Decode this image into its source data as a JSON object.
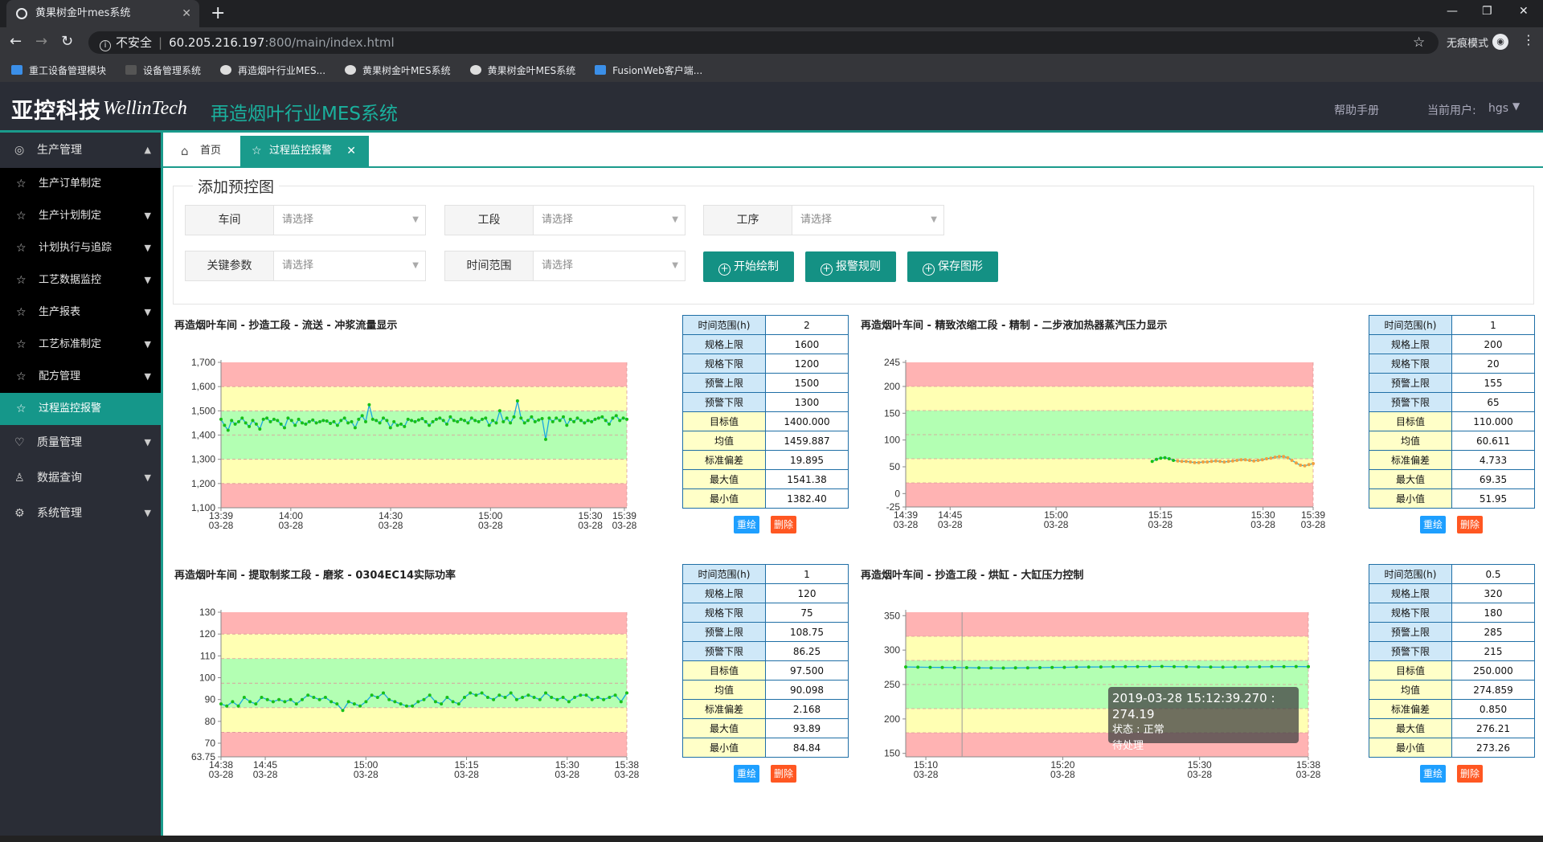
{
  "browser": {
    "tab_title": "黄果树金叶mes系统",
    "insecure": "不安全",
    "url_host": "60.205.216.197",
    "url_path": ":800/main/index.html",
    "incognito": "无痕模式",
    "bookmarks": [
      {
        "label": "重工设备管理模块",
        "color": "#3b8fe8"
      },
      {
        "label": "设备管理系统",
        "color": "#555"
      },
      {
        "label": "再造烟叶行业MES...",
        "color": "#ddd"
      },
      {
        "label": "黄果树金叶MES系统",
        "color": "#ddd"
      },
      {
        "label": "黄果树金叶MES系统",
        "color": "#ddd"
      },
      {
        "label": "FusionWeb客户端...",
        "color": "#3b8fe8"
      }
    ]
  },
  "app": {
    "brand_cn": "亚控科技",
    "brand_en": "WellinTech",
    "system_title": "再造烟叶行业MES系统",
    "help": "帮助手册",
    "current_user_label": "当前用户:",
    "current_user": "hgs"
  },
  "sidebar": {
    "items": [
      {
        "label": "生产管理",
        "type": "parent",
        "expanded": true
      },
      {
        "label": "生产订单制定",
        "type": "sub"
      },
      {
        "label": "生产计划制定",
        "type": "sub",
        "arrow": true
      },
      {
        "label": "计划执行与追踪",
        "type": "sub",
        "arrow": true
      },
      {
        "label": "工艺数据监控",
        "type": "sub",
        "arrow": true
      },
      {
        "label": "生产报表",
        "type": "sub",
        "arrow": true
      },
      {
        "label": "工艺标准制定",
        "type": "sub",
        "arrow": true
      },
      {
        "label": "配方管理",
        "type": "sub",
        "arrow": true
      },
      {
        "label": "过程监控报警",
        "type": "sub",
        "active": true
      },
      {
        "label": "质量管理",
        "type": "parent"
      },
      {
        "label": "数据查询",
        "type": "parent"
      },
      {
        "label": "系统管理",
        "type": "parent"
      }
    ]
  },
  "tabs": {
    "home": "首页",
    "current": "过程监控报警"
  },
  "form": {
    "legend": "添加预控图",
    "fields": [
      {
        "label": "车间",
        "placeholder": "请选择"
      },
      {
        "label": "工段",
        "placeholder": "请选择"
      },
      {
        "label": "工序",
        "placeholder": "请选择"
      },
      {
        "label": "关键参数",
        "placeholder": "请选择"
      },
      {
        "label": "时间范围",
        "placeholder": "请选择"
      }
    ],
    "buttons": [
      "开始绘制",
      "报警规则",
      "保存图形"
    ]
  },
  "colors": {
    "accent": "#1a9b8c",
    "red_zone": "#ffb3b3",
    "yellow_zone": "#ffffb3",
    "green_zone": "#b3ffb3",
    "line": "#1aa7e0",
    "point": "#18c018"
  },
  "stat_labels": [
    "时间范围(h)",
    "规格上限",
    "规格下限",
    "预警上限",
    "预警下限",
    "目标值",
    "均值",
    "标准偏差",
    "最大值",
    "最小值"
  ],
  "redraw_label": "重绘",
  "delete_label": "删除",
  "tooltip": {
    "line1": "2019-03-28 15:12:39.270 : 274.19",
    "line2": "状态 : 正常",
    "line3": "待处理"
  },
  "chart_data": [
    {
      "type": "line",
      "title": "再造烟叶车间 - 抄造工段 - 流送 - 冲浆流量显示",
      "ylim": [
        1100,
        1700
      ],
      "yticks": [
        "1,700",
        "1,600",
        "1,500",
        "1,400",
        "1,300",
        "1,200",
        "1,100"
      ],
      "xticks": [
        [
          "13:39",
          "03-28"
        ],
        [
          "14:00",
          "03-28"
        ],
        [
          "14:30",
          "03-28"
        ],
        [
          "15:00",
          "03-28"
        ],
        [
          "15:30",
          "03-28"
        ],
        [
          "15:39",
          "03-28"
        ]
      ],
      "zones": {
        "spec_upper": 1600,
        "spec_lower": 1200,
        "warn_upper": 1500,
        "warn_lower": 1300
      },
      "start_frac": 0.0,
      "stats": [
        "2",
        "1600",
        "1200",
        "1500",
        "1300",
        "1400.000",
        "1459.887",
        "19.895",
        "1541.38",
        "1382.40"
      ],
      "values": [
        1465,
        1440,
        1420,
        1460,
        1445,
        1455,
        1470,
        1450,
        1435,
        1460,
        1445,
        1425,
        1465,
        1470,
        1455,
        1465,
        1460,
        1445,
        1430,
        1470,
        1460,
        1440,
        1465,
        1450,
        1445,
        1455,
        1462,
        1450,
        1455,
        1460,
        1458,
        1448,
        1455,
        1440,
        1460,
        1470,
        1450,
        1455,
        1430,
        1465,
        1480,
        1455,
        1525,
        1465,
        1460,
        1450,
        1470,
        1460,
        1430,
        1455,
        1440,
        1445,
        1435,
        1465,
        1460,
        1455,
        1462,
        1468,
        1455,
        1440,
        1455,
        1465,
        1470,
        1460,
        1445,
        1475,
        1460,
        1455,
        1465,
        1460,
        1450,
        1470,
        1460,
        1455,
        1465,
        1470,
        1440,
        1460,
        1450,
        1500,
        1455,
        1470,
        1450,
        1475,
        1541,
        1470,
        1450,
        1460,
        1475,
        1455,
        1462,
        1468,
        1382,
        1470,
        1455,
        1470,
        1460,
        1475,
        1440,
        1465,
        1455,
        1470,
        1460,
        1450,
        1460,
        1455,
        1465,
        1470,
        1475,
        1460,
        1445,
        1470,
        1480,
        1460,
        1470,
        1465
      ]
    },
    {
      "type": "line",
      "title": "再造烟叶车间 - 精致浓缩工段 - 精制 - 二步液加热器蒸汽压力显示",
      "ylim": [
        -25,
        245
      ],
      "yticks": [
        "245",
        "200",
        "150",
        "100",
        "50",
        "0",
        "-25"
      ],
      "xticks": [
        [
          "14:39",
          "03-28"
        ],
        [
          "14:45",
          "03-28"
        ],
        [
          "15:00",
          "03-28"
        ],
        [
          "15:15",
          "03-28"
        ],
        [
          "15:30",
          "03-28"
        ],
        [
          "15:39",
          "03-28"
        ]
      ],
      "zones": {
        "spec_upper": 200,
        "spec_lower": 20,
        "warn_upper": 155,
        "warn_lower": 65
      },
      "start_frac": 0.605,
      "stats": [
        "1",
        "200",
        "20",
        "155",
        "65",
        "110.000",
        "60.611",
        "4.733",
        "69.35",
        "51.95"
      ],
      "values": [
        60,
        64,
        66,
        67,
        65,
        62,
        61,
        60,
        60,
        59,
        58,
        58,
        59,
        59,
        60,
        61,
        60,
        59,
        60,
        61,
        62,
        63,
        63,
        62,
        61,
        62,
        63,
        65,
        66,
        68,
        69,
        69,
        67,
        62,
        57,
        53,
        52,
        54,
        56
      ]
    },
    {
      "type": "line",
      "title": "再造烟叶车间 - 提取制浆工段 - 磨浆 - 0304EC14实际功率",
      "ylim": [
        63.75,
        130
      ],
      "yticks": [
        "130",
        "120",
        "110",
        "100",
        "90",
        "80",
        "70",
        "63.75"
      ],
      "xticks": [
        [
          "14:38",
          "03-28"
        ],
        [
          "14:45",
          "03-28"
        ],
        [
          "15:00",
          "03-28"
        ],
        [
          "15:15",
          "03-28"
        ],
        [
          "15:30",
          "03-28"
        ],
        [
          "15:38",
          "03-28"
        ]
      ],
      "zones": {
        "spec_upper": 120,
        "spec_lower": 75,
        "warn_upper": 108.75,
        "warn_lower": 86.25
      },
      "start_frac": 0.0,
      "stats": [
        "1",
        "120",
        "75",
        "108.75",
        "86.25",
        "97.500",
        "90.098",
        "2.168",
        "93.89",
        "84.84"
      ],
      "values": [
        88,
        87,
        89,
        87,
        91,
        89,
        88,
        91,
        90,
        89,
        90,
        89,
        90,
        88,
        90,
        92,
        91,
        90,
        91,
        89,
        88,
        85,
        89,
        88,
        87,
        89,
        92,
        91,
        93,
        90,
        89,
        88,
        87,
        87,
        89,
        90,
        92,
        89,
        88,
        91,
        89,
        88,
        91,
        93,
        92,
        93,
        91,
        90,
        92,
        91,
        93,
        90,
        91,
        92,
        91,
        90,
        93,
        91,
        90,
        91,
        89,
        91,
        92,
        92,
        90,
        91,
        90,
        91,
        92,
        89,
        93
      ]
    },
    {
      "type": "line",
      "title": "再造烟叶车间 - 抄造工段 - 烘缸 - 大缸压力控制",
      "ylim": [
        145,
        355
      ],
      "yticks": [
        "350",
        "300",
        "250",
        "200",
        "150"
      ],
      "xticks": [
        [
          "15:10",
          "03-28"
        ],
        [
          "15:20",
          "03-28"
        ],
        [
          "15:30",
          "03-28"
        ],
        [
          "15:38",
          "03-28"
        ]
      ],
      "zones": {
        "spec_upper": 320,
        "spec_lower": 180,
        "warn_upper": 285,
        "warn_lower": 215
      },
      "start_frac": 0.0,
      "stats": [
        "0.5",
        "320",
        "180",
        "285",
        "215",
        "250.000",
        "274.859",
        "0.850",
        "276.21",
        "273.26"
      ],
      "values": [
        275.5,
        275.2,
        275.0,
        274.9,
        274.6,
        274.5,
        274.2,
        274.0,
        273.9,
        274.1,
        274.3,
        274.5,
        274.8,
        275.0,
        275.3,
        275.4,
        275.6,
        275.8,
        275.9,
        276.0,
        276.1,
        276.2,
        276.0,
        275.8,
        275.5,
        275.3,
        275.2,
        275.4,
        275.6,
        275.7,
        275.9,
        276.0,
        276.1,
        275.9
      ]
    }
  ]
}
